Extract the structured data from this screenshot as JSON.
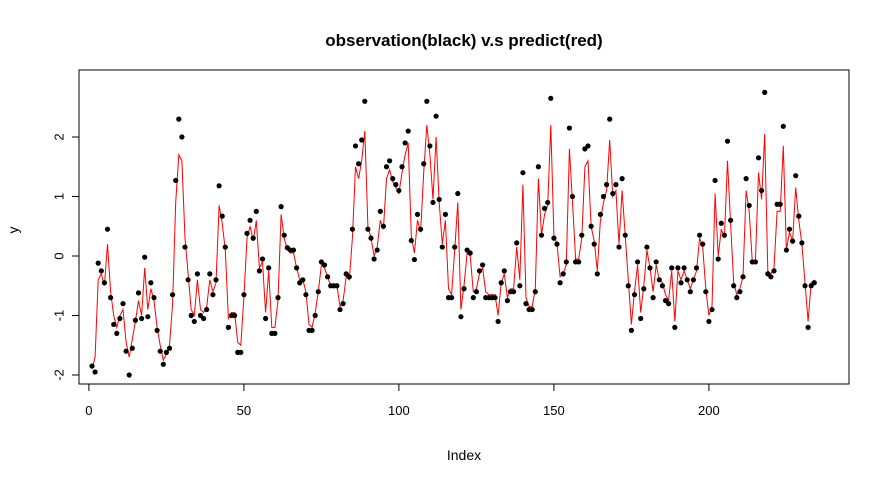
{
  "chart_data": {
    "type": "line+scatter",
    "title": "observation(black) v.s predict(red)",
    "xlabel": "Index",
    "ylabel": "y",
    "xlim": [
      1,
      241
    ],
    "ylim": [
      -2.2,
      2.85
    ],
    "x_ticks": [
      0,
      50,
      100,
      150,
      200
    ],
    "y_ticks": [
      -2,
      -1,
      0,
      1,
      2
    ],
    "grid": false,
    "legend": "none",
    "colors": {
      "observation": "#000000",
      "predict": "#ff0000"
    },
    "series": [
      {
        "kind": "points",
        "values": [
          -1.85,
          -1.95,
          -0.12,
          -0.25,
          -0.45,
          0.45,
          -0.7,
          -1.15,
          -1.3,
          -1.05,
          -0.8,
          -1.6,
          -2.0,
          -1.55,
          -1.08,
          -0.62,
          -1.05,
          -0.02,
          -1.02,
          -0.45,
          -0.7,
          -1.25,
          -1.6,
          -1.82,
          -1.62,
          -1.55,
          -0.65,
          1.27,
          2.3,
          2.0,
          0.15,
          -0.4,
          -1.0,
          -1.1,
          -0.3,
          -1.0,
          -1.05,
          -0.9,
          -0.3,
          -0.65,
          -0.4,
          1.18,
          0.67,
          0.15,
          -1.2,
          -1.0,
          -1.0,
          -1.62,
          -1.62,
          -0.65,
          0.38,
          0.6,
          0.3,
          0.75,
          -0.25,
          -0.05,
          -1.05,
          -0.2,
          -1.3,
          -1.3,
          -0.7,
          0.83,
          0.35,
          0.14,
          0.1,
          0.1,
          -0.2,
          -0.45,
          -0.4,
          -0.65,
          -1.25,
          -1.25,
          -1.0,
          -0.6,
          -0.1,
          -0.15,
          -0.35,
          -0.5,
          -0.5,
          -0.5,
          -0.9,
          -0.8,
          -0.3,
          -0.35,
          0.45,
          1.85,
          1.55,
          1.95,
          2.6,
          0.45,
          0.3,
          -0.05,
          0.1,
          0.75,
          0.5,
          1.5,
          1.6,
          1.3,
          1.2,
          1.1,
          1.5,
          1.9,
          2.1,
          0.26,
          -0.06,
          0.7,
          0.45,
          1.55,
          2.6,
          1.85,
          0.9,
          2.35,
          0.95,
          0.15,
          0.7,
          -0.7,
          -0.7,
          0.15,
          1.05,
          -1.02,
          -0.55,
          0.1,
          0.05,
          -0.7,
          -0.6,
          -0.25,
          -0.15,
          -0.7,
          -0.7,
          -0.7,
          -0.7,
          -1.1,
          -0.45,
          -0.25,
          -0.75,
          -0.6,
          -0.6,
          0.22,
          -0.5,
          1.4,
          -0.8,
          -0.9,
          -0.9,
          -0.6,
          1.5,
          0.35,
          0.8,
          0.9,
          2.65,
          0.3,
          0.2,
          -0.45,
          -0.3,
          -0.1,
          2.15,
          1.0,
          -0.1,
          -0.1,
          0.35,
          1.8,
          1.85,
          0.5,
          0.2,
          -0.3,
          0.7,
          1.0,
          1.2,
          2.3,
          1.05,
          1.2,
          0.15,
          1.3,
          0.35,
          -0.5,
          -1.25,
          -0.65,
          -0.1,
          -1.05,
          -0.55,
          0.15,
          -0.2,
          -0.7,
          -0.1,
          -0.4,
          -0.5,
          -0.75,
          -0.8,
          -0.2,
          -1.2,
          -0.2,
          -0.45,
          -0.2,
          -0.4,
          -0.6,
          -0.4,
          -0.2,
          0.35,
          0.2,
          -0.6,
          -1.1,
          -0.9,
          1.27,
          -0.05,
          0.55,
          0.35,
          1.93,
          0.6,
          -0.5,
          -0.7,
          -0.6,
          -0.35,
          1.3,
          0.85,
          -0.1,
          -0.1,
          1.65,
          1.1,
          2.75,
          -0.3,
          -0.35,
          -0.25,
          0.87,
          0.87,
          2.18,
          0.1,
          0.45,
          0.25,
          1.35,
          0.67,
          0.22,
          -0.5,
          -1.2,
          -0.5,
          -0.45
        ]
      },
      {
        "kind": "line",
        "values": [
          -1.9,
          -1.7,
          -0.4,
          -0.3,
          -0.5,
          0.2,
          -0.6,
          -1.0,
          -1.2,
          -1.0,
          -0.9,
          -1.45,
          -1.7,
          -1.4,
          -1.1,
          -0.75,
          -1.0,
          -0.2,
          -0.9,
          -0.55,
          -0.75,
          -1.2,
          -1.5,
          -1.75,
          -1.65,
          -1.5,
          -0.8,
          0.9,
          1.7,
          1.6,
          0.3,
          -0.3,
          -0.9,
          -1.0,
          -0.4,
          -0.9,
          -0.95,
          -0.85,
          -0.4,
          -0.6,
          -0.45,
          0.85,
          0.55,
          0.1,
          -1.05,
          -0.95,
          -0.95,
          -1.45,
          -1.5,
          -0.7,
          0.3,
          0.5,
          0.25,
          0.6,
          -0.2,
          -0.1,
          -0.95,
          -0.25,
          -1.2,
          -1.2,
          -0.75,
          0.7,
          0.3,
          0.1,
          0.05,
          0.05,
          -0.2,
          -0.4,
          -0.4,
          -0.6,
          -1.15,
          -1.2,
          -0.95,
          -0.6,
          -0.15,
          -0.2,
          -0.35,
          -0.5,
          -0.5,
          -0.5,
          -0.85,
          -0.75,
          -0.35,
          -0.4,
          0.3,
          1.5,
          1.3,
          1.6,
          2.1,
          0.5,
          0.3,
          0.0,
          0.15,
          0.6,
          0.45,
          1.3,
          1.45,
          1.25,
          1.15,
          1.05,
          1.4,
          1.7,
          1.9,
          0.35,
          0.05,
          0.6,
          0.4,
          1.4,
          2.2,
          1.7,
          0.95,
          2.0,
          0.9,
          0.2,
          0.6,
          -0.55,
          -0.65,
          0.1,
          0.9,
          -0.9,
          -0.5,
          0.05,
          0.0,
          -0.6,
          -0.55,
          -0.3,
          -0.2,
          -0.6,
          -0.65,
          -0.65,
          -0.65,
          -1.0,
          -0.45,
          -0.3,
          -0.7,
          -0.55,
          -0.55,
          0.15,
          -0.4,
          1.2,
          -0.7,
          -0.85,
          -0.85,
          -0.55,
          1.3,
          0.35,
          0.7,
          0.85,
          2.2,
          0.35,
          0.2,
          -0.35,
          -0.3,
          -0.15,
          1.8,
          0.9,
          -0.05,
          -0.05,
          0.3,
          1.5,
          1.6,
          0.5,
          0.25,
          -0.25,
          0.6,
          0.9,
          1.1,
          1.95,
          1.0,
          1.1,
          0.2,
          1.1,
          0.35,
          -0.4,
          -1.15,
          -0.6,
          -0.15,
          -0.95,
          -0.5,
          0.1,
          -0.2,
          -0.6,
          -0.15,
          -0.4,
          -0.45,
          -0.65,
          -0.75,
          -0.25,
          -1.1,
          -0.25,
          -0.4,
          -0.25,
          -0.4,
          -0.55,
          -0.4,
          -0.25,
          0.3,
          0.15,
          -0.55,
          -1.0,
          -0.85,
          1.05,
          0.0,
          0.45,
          0.3,
          1.6,
          0.55,
          -0.45,
          -0.65,
          -0.55,
          -0.35,
          1.1,
          0.75,
          -0.1,
          -0.1,
          1.4,
          0.95,
          2.05,
          -0.25,
          -0.3,
          -0.2,
          0.75,
          0.75,
          1.85,
          0.1,
          0.4,
          0.25,
          1.15,
          0.6,
          0.2,
          -0.45,
          -1.1,
          -0.45,
          -0.4
        ]
      }
    ]
  }
}
